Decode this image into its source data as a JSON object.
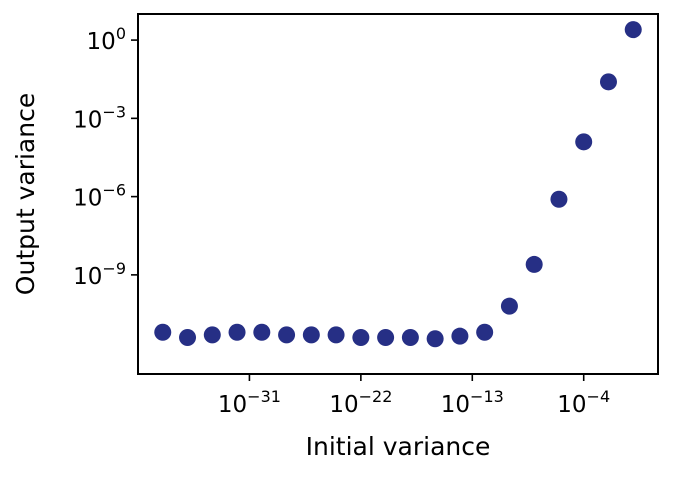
{
  "chart_data": {
    "type": "scatter",
    "title": "",
    "xlabel": "Initial variance",
    "ylabel": "Output variance",
    "x_scale": "log",
    "y_scale": "log",
    "xlim_exponent": [
      -40,
      2
    ],
    "ylim_exponent": [
      -12.8,
      1
    ],
    "x_ticks": [
      {
        "base": "10",
        "exp": "−31",
        "value_exp": -31
      },
      {
        "base": "10",
        "exp": "−22",
        "value_exp": -22
      },
      {
        "base": "10",
        "exp": "−13",
        "value_exp": -13
      },
      {
        "base": "10",
        "exp": "−4",
        "value_exp": -4
      }
    ],
    "y_ticks": [
      {
        "base": "10",
        "exp": "0",
        "value_exp": 0
      },
      {
        "base": "10",
        "exp": "−3",
        "value_exp": -3
      },
      {
        "base": "10",
        "exp": "−6",
        "value_exp": -6
      },
      {
        "base": "10",
        "exp": "−9",
        "value_exp": -9
      }
    ],
    "grid": false,
    "marker_color": "#262f85",
    "points_log10": [
      {
        "x": -38,
        "y": -11.2
      },
      {
        "x": -36,
        "y": -11.4
      },
      {
        "x": -34,
        "y": -11.3
      },
      {
        "x": -32,
        "y": -11.2
      },
      {
        "x": -30,
        "y": -11.2
      },
      {
        "x": -28,
        "y": -11.3
      },
      {
        "x": -26,
        "y": -11.3
      },
      {
        "x": -24,
        "y": -11.3
      },
      {
        "x": -22,
        "y": -11.4
      },
      {
        "x": -20,
        "y": -11.4
      },
      {
        "x": -18,
        "y": -11.4
      },
      {
        "x": -16,
        "y": -11.45
      },
      {
        "x": -14,
        "y": -11.35
      },
      {
        "x": -12,
        "y": -11.2
      },
      {
        "x": -10,
        "y": -10.2
      },
      {
        "x": -8,
        "y": -8.6
      },
      {
        "x": -6,
        "y": -6.1
      },
      {
        "x": -4,
        "y": -3.9
      },
      {
        "x": -2,
        "y": -1.6
      },
      {
        "x": 0,
        "y": 0.4
      }
    ]
  }
}
